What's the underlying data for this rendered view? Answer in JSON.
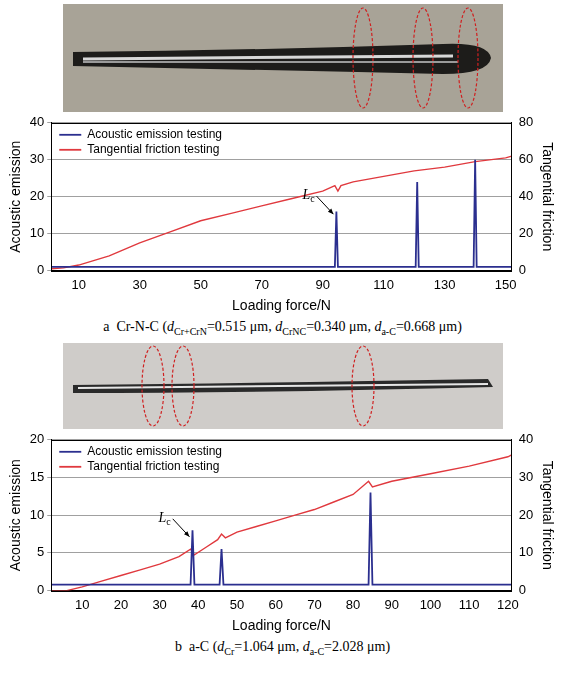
{
  "chart_data": [
    {
      "type": "line",
      "caption": [
        {
          "text": "a  Cr-N-C ("
        },
        {
          "italic": "d"
        },
        {
          "sub": "Cr+CrN"
        },
        {
          "text": "=0.515 μm, "
        },
        {
          "italic": "d"
        },
        {
          "sub": "CrNC"
        },
        {
          "text": "=0.340 μm, "
        },
        {
          "italic": "d"
        },
        {
          "sub": "a-C"
        },
        {
          "text": "=0.668 μm)"
        }
      ],
      "x_label": "Loading force/N",
      "y_label": "Acoustic emission",
      "y2_label": "Tangential friction",
      "xlim": [
        1,
        152
      ],
      "xticks": [
        10,
        30,
        50,
        70,
        90,
        110,
        130,
        150
      ],
      "ylim": [
        0,
        40
      ],
      "yticks": [
        0,
        10,
        20,
        30,
        40
      ],
      "y2lim": [
        0,
        80
      ],
      "y2ticks": [
        0,
        20,
        40,
        60,
        80
      ],
      "grid": true,
      "legend": "upper left",
      "annotations": [
        {
          "text": "L",
          "sub": "c",
          "x": 94.5,
          "y": 15
        }
      ],
      "series": [
        {
          "name": "Acoustic emission testing",
          "color": "#2b2f8f",
          "axis": "y",
          "x": [
            1,
            94,
            94.5,
            95,
            120.5,
            121,
            121.5,
            139.5,
            140,
            140.5,
            152
          ],
          "values": [
            1,
            1,
            16,
            1,
            1,
            24,
            1,
            1,
            30,
            1,
            1
          ]
        },
        {
          "name": "Tangential friction testing",
          "color": "#e0393e",
          "axis": "y2",
          "x": [
            1,
            5,
            10,
            20,
            30,
            40,
            50,
            60,
            70,
            80,
            90,
            94,
            95,
            96,
            100,
            110,
            120,
            130,
            140,
            150,
            152
          ],
          "values": [
            1,
            1.5,
            3,
            8,
            15,
            21,
            27,
            31,
            35,
            39,
            43,
            46,
            43,
            46,
            48,
            51,
            54,
            56,
            59,
            61,
            62
          ]
        }
      ]
    },
    {
      "type": "line",
      "caption": [
        {
          "text": "b  a-C ("
        },
        {
          "italic": "d"
        },
        {
          "sub": "Cr"
        },
        {
          "text": "=1.064 μm, "
        },
        {
          "italic": "d"
        },
        {
          "sub": "a-C"
        },
        {
          "text": "=2.028 μm)"
        }
      ],
      "x_label": "Loading force/N",
      "y_label": "Acoustic emission",
      "y2_label": "Tangential friction",
      "xlim": [
        2,
        121
      ],
      "xticks": [
        10,
        20,
        30,
        40,
        50,
        60,
        70,
        80,
        90,
        100,
        110,
        120
      ],
      "ylim": [
        0,
        20
      ],
      "yticks": [
        0,
        5,
        10,
        15,
        20
      ],
      "y2lim": [
        0,
        40
      ],
      "y2ticks": [
        0,
        10,
        20,
        30,
        40
      ],
      "grid": true,
      "legend": "upper left",
      "annotations": [
        {
          "text": "L",
          "sub": "c",
          "x": 38.5,
          "y": 7
        }
      ],
      "series": [
        {
          "name": "Acoustic emission testing",
          "color": "#2b2f8f",
          "axis": "y",
          "x": [
            2,
            38,
            38.5,
            39,
            45.5,
            46,
            46.5,
            84,
            84.5,
            85,
            121
          ],
          "values": [
            0.8,
            0.8,
            8,
            0.8,
            0.8,
            5.5,
            0.8,
            0.8,
            13,
            0.8,
            0.8
          ]
        },
        {
          "name": "Tangential friction testing",
          "color": "#e0393e",
          "axis": "y2",
          "x": [
            2,
            6,
            10,
            15,
            20,
            25,
            30,
            35,
            38,
            39,
            42,
            45,
            46,
            47,
            50,
            55,
            60,
            65,
            70,
            75,
            80,
            84,
            85,
            90,
            95,
            100,
            110,
            120,
            121
          ],
          "values": [
            0,
            0,
            1,
            2.5,
            4,
            5.5,
            7,
            9,
            11,
            9.5,
            11.5,
            13.5,
            15,
            14,
            15.5,
            17,
            18.5,
            20,
            21.5,
            23.5,
            25.5,
            29,
            27.5,
            29,
            30,
            31,
            33,
            35.5,
            36
          ]
        }
      ]
    }
  ]
}
